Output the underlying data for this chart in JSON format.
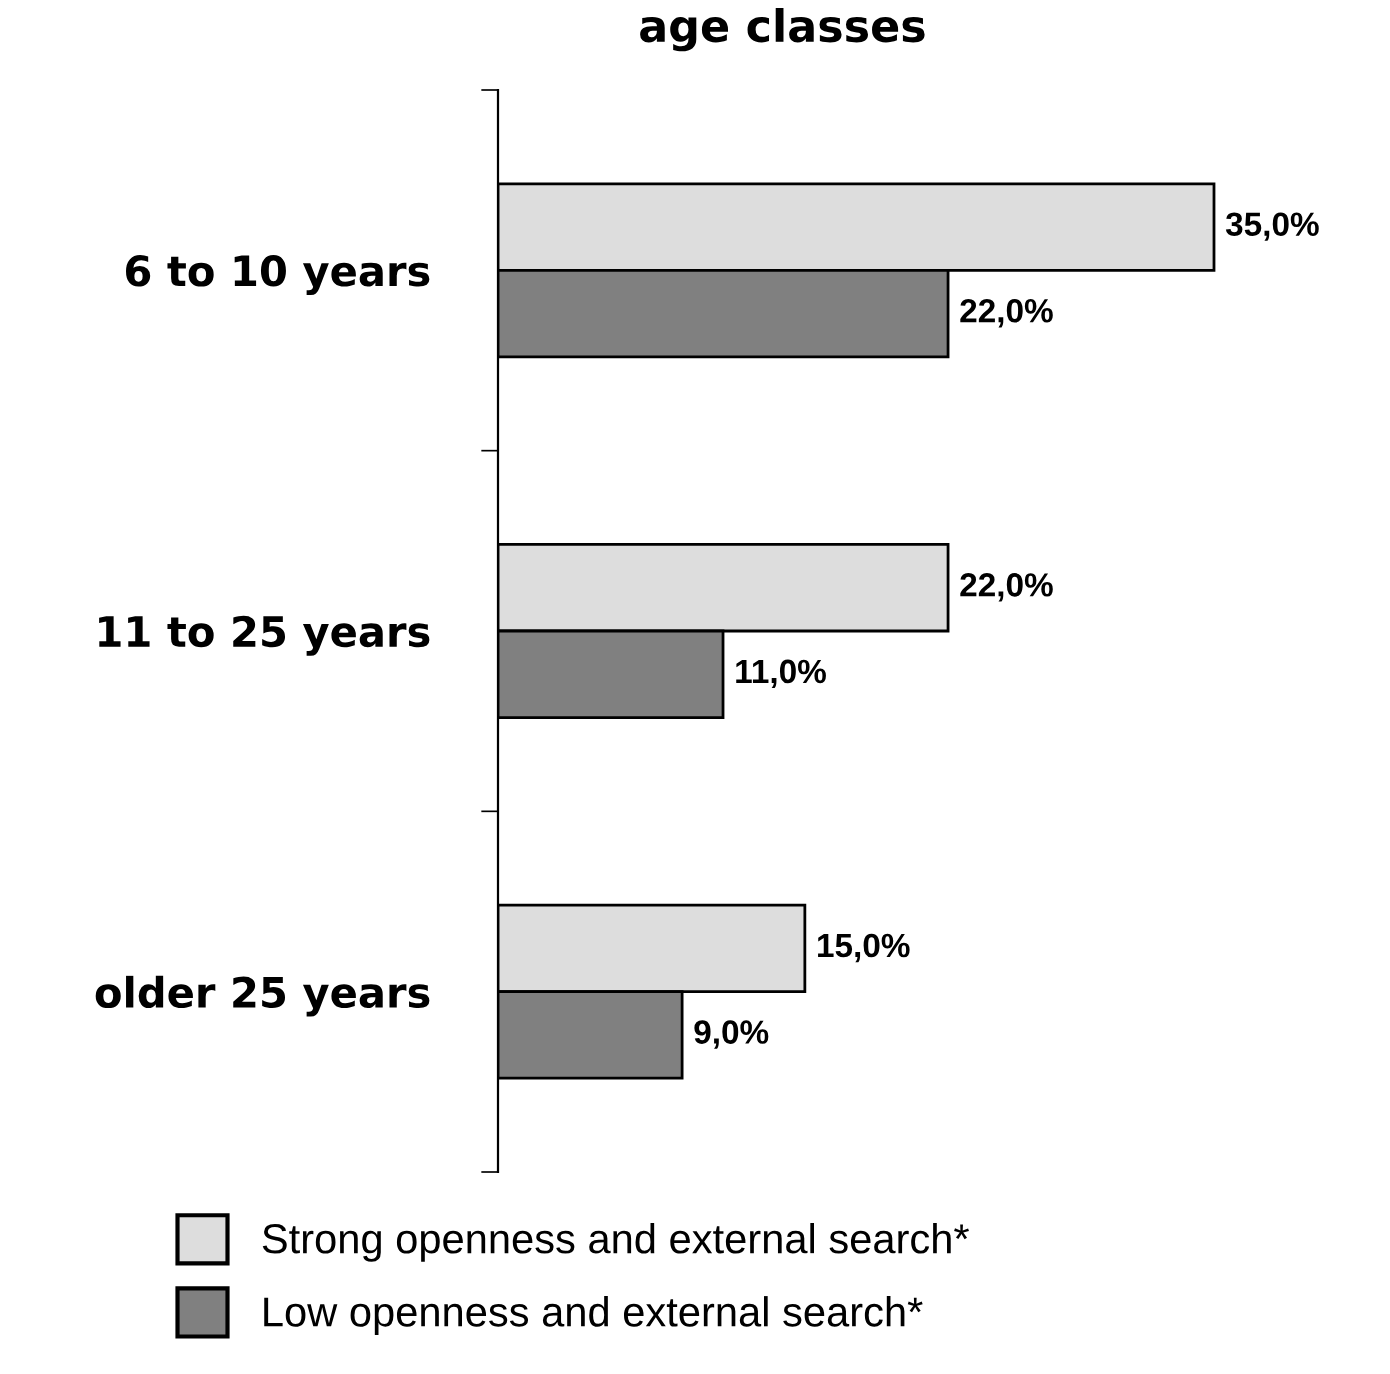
{
  "chart_data": {
    "type": "bar",
    "orientation": "horizontal",
    "title": "age classes",
    "categories": [
      "6 to 10 years",
      "11 to 25 years",
      "older 25 years"
    ],
    "series": [
      {
        "name": "Strong openness and external search*",
        "color": "#dddddd",
        "values": [
          35.0,
          22.0,
          15.0
        ],
        "value_labels": [
          "35,0%",
          "22,0%",
          "15,0%"
        ]
      },
      {
        "name": "Low openness and external search*",
        "color": "#808080",
        "values": [
          22.0,
          11.0,
          9.0
        ],
        "value_labels": [
          "22,0%",
          "11,0%",
          "9,0%"
        ]
      }
    ],
    "legend": "bottom",
    "grid": false
  }
}
